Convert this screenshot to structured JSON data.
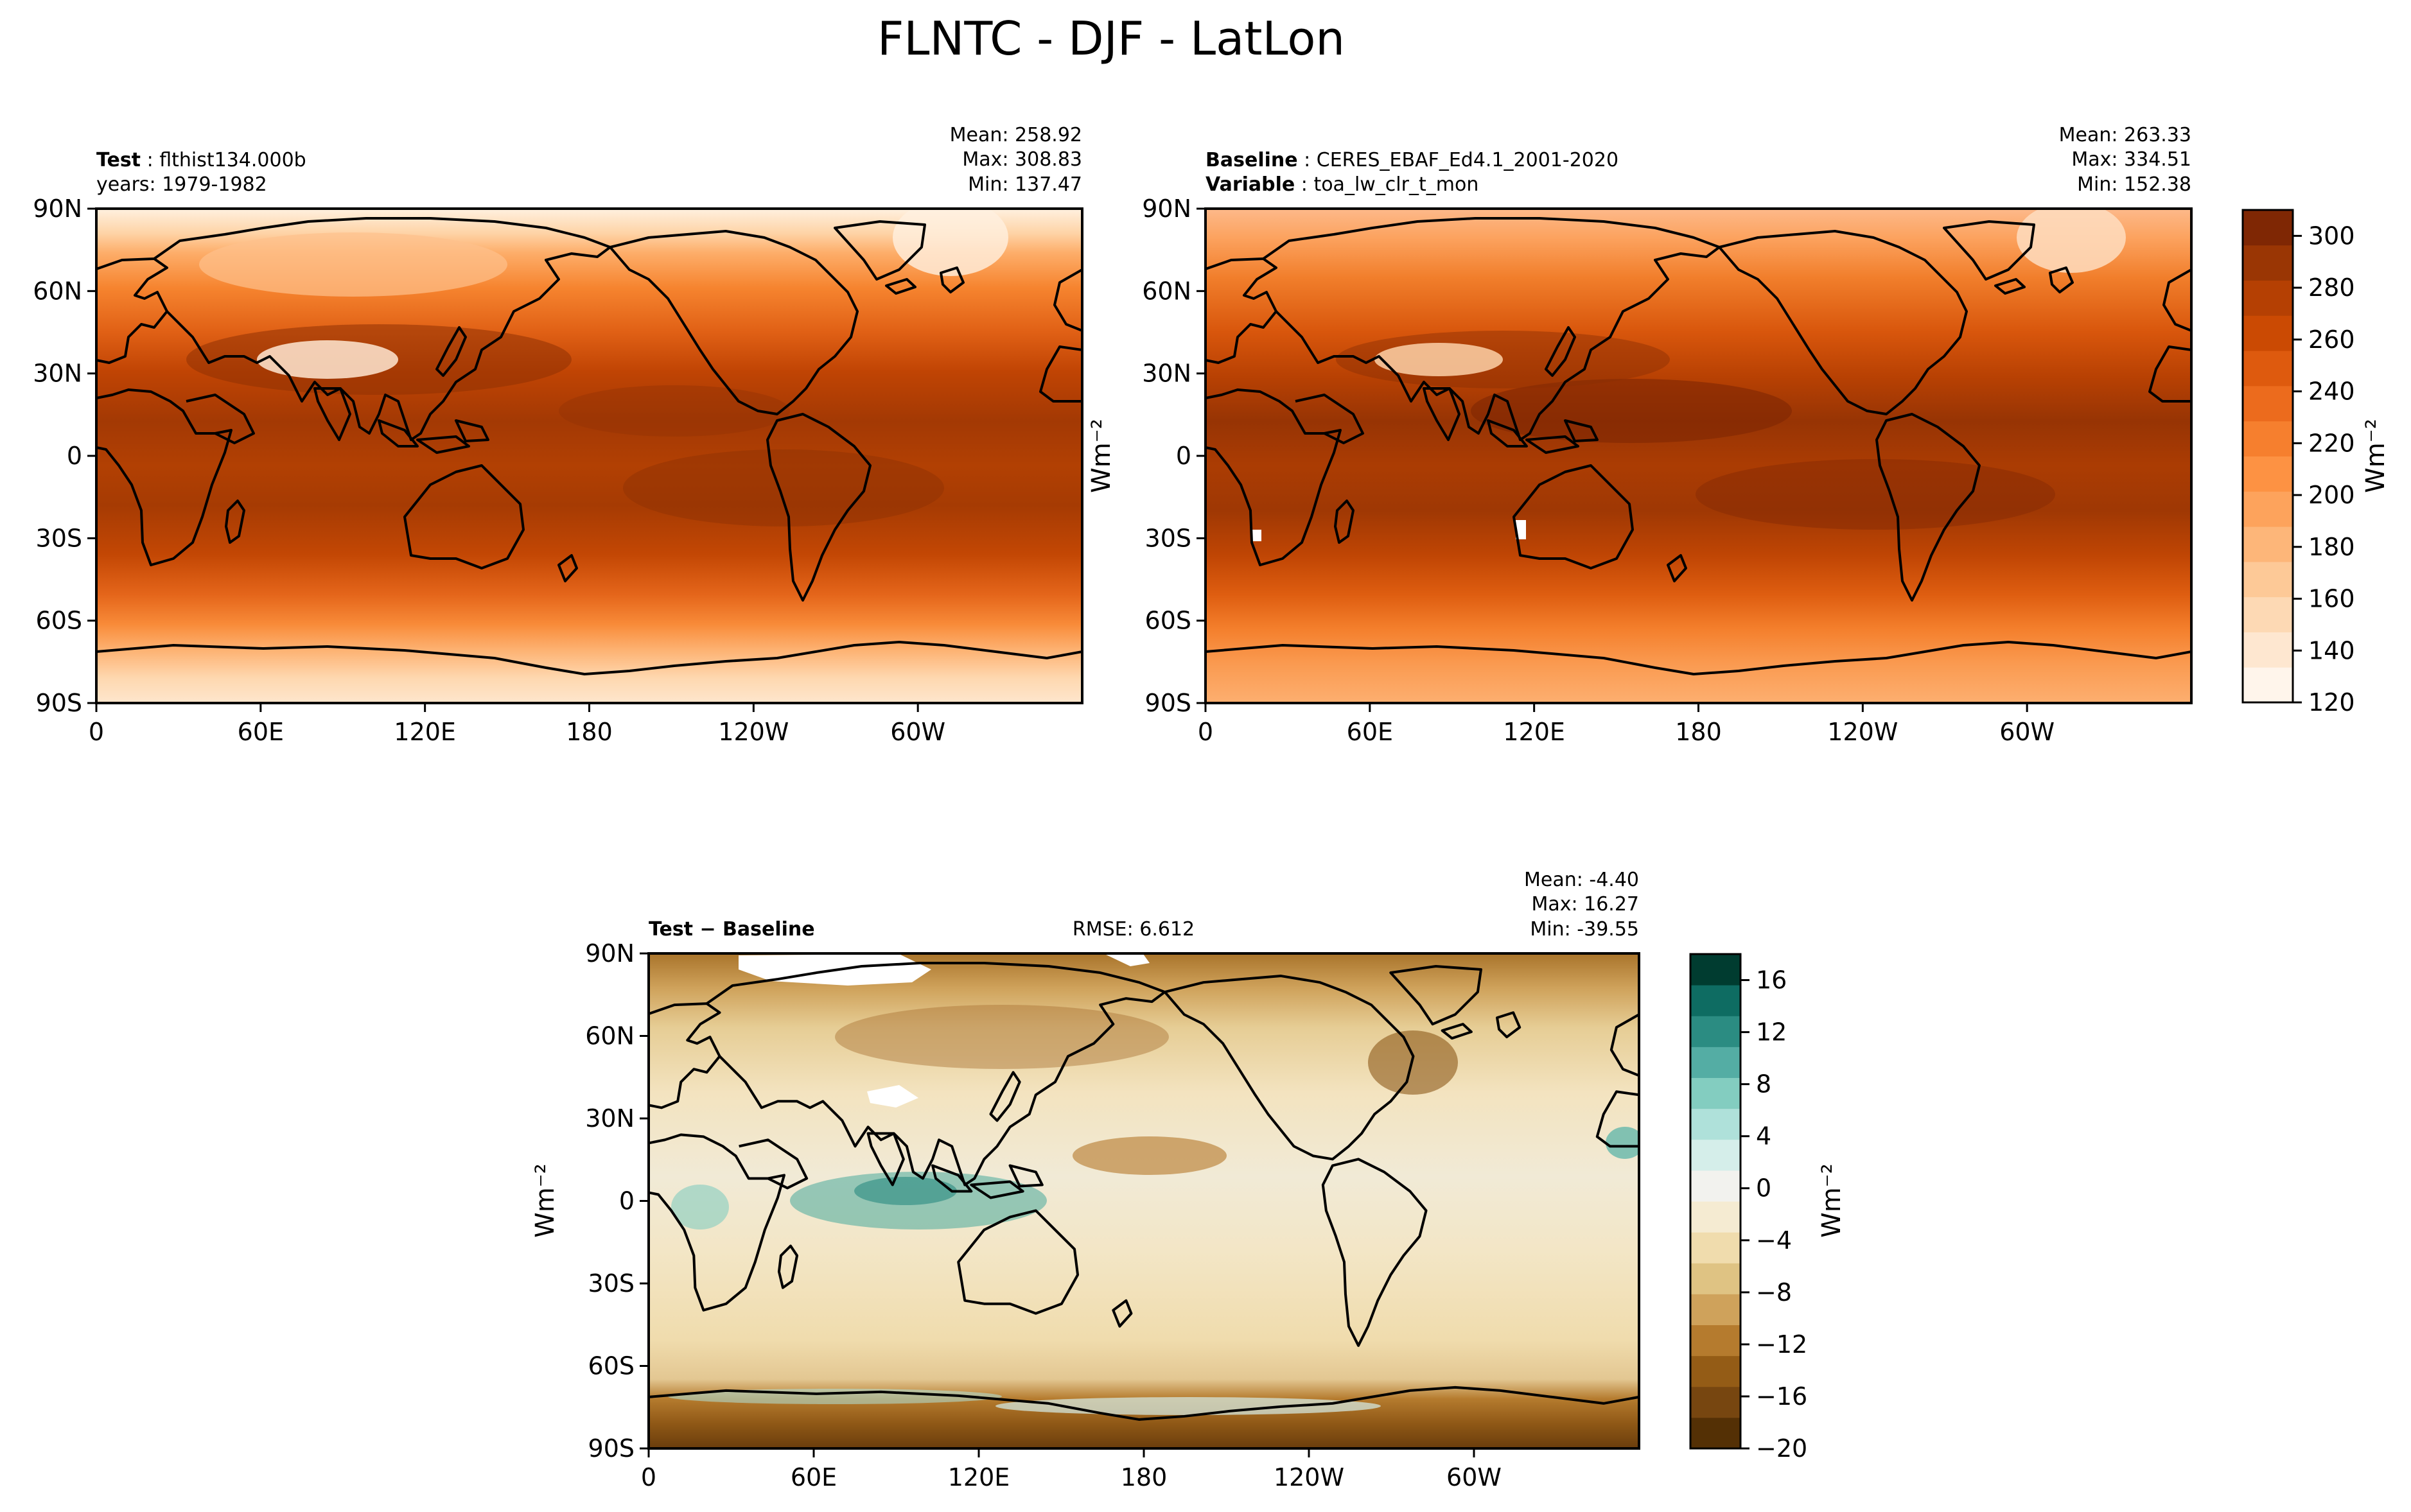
{
  "title": "FLNTC - DJF - LatLon",
  "colors": {
    "field": [
      "#fff5eb",
      "#fee7d0",
      "#fdd9b4",
      "#fdc997",
      "#fdb679",
      "#fda35c",
      "#fd9243",
      "#f67f2e",
      "#ec6b1d",
      "#de5a0e",
      "#cb4a03",
      "#b54003",
      "#9a3604",
      "#7f2704"
    ],
    "diff": [
      "#543005",
      "#774610",
      "#945c16",
      "#b57b2e",
      "#cfa25b",
      "#dfc383",
      "#f0dcad",
      "#f5ebd2",
      "#f2f2ee",
      "#d5eeea",
      "#afe1da",
      "#83cdc0",
      "#54ada4",
      "#2b8c82",
      "#0e6c62",
      "#003c30"
    ],
    "missing": "#ffffff"
  },
  "panels": [
    {
      "id": "test",
      "label_name": "Test",
      "label_value": "flthist134.000b",
      "label2": "years: 1979-1982",
      "stats": {
        "mean": "Mean: 258.92",
        "max": "Max: 308.83",
        "min": "Min: 137.47"
      }
    },
    {
      "id": "baseline",
      "label_name": "Baseline",
      "label_value": "CERES_EBAF_Ed4.1_2001-2020",
      "label2_name": "Variable",
      "label2_value": "toa_lw_clr_t_mon",
      "stats": {
        "mean": "Mean: 263.33",
        "max": "Max: 334.51",
        "min": "Min: 152.38"
      }
    },
    {
      "id": "diff",
      "label_name": "Test − Baseline",
      "rmse": "RMSE: 6.612",
      "stats": {
        "mean": "Mean: -4.40",
        "max": "Max: 16.27",
        "min": "Min: -39.55"
      }
    }
  ],
  "axes": {
    "xticks": [
      "0",
      "60E",
      "120E",
      "180",
      "120W",
      "60W"
    ],
    "yticks": [
      "90N",
      "60N",
      "30N",
      "0",
      "30S",
      "60S",
      "90S"
    ],
    "unit": "Wm⁻²"
  },
  "colorbar_top": {
    "ticks": [
      "300",
      "280",
      "260",
      "240",
      "220",
      "200",
      "180",
      "160",
      "140",
      "120"
    ],
    "range": [
      120,
      310
    ],
    "label": "Wm⁻²"
  },
  "colorbar_diff": {
    "ticks": [
      "16",
      "12",
      "8",
      "4",
      "0",
      "−4",
      "−8",
      "−12",
      "−16",
      "−20"
    ],
    "range": [
      -20,
      18
    ],
    "label": "Wm⁻²"
  },
  "chart_data": [
    {
      "type": "heatmap",
      "title": "Test",
      "subtitle": "flthist134.000b, years: 1979-1982",
      "value_range": [
        120,
        310
      ],
      "stats": {
        "mean": 258.92,
        "max": 308.83,
        "min": 137.47
      }
    },
    {
      "type": "heatmap",
      "title": "Baseline",
      "subtitle": "CERES_EBAF_Ed4.1_2001-2020, toa_lw_clr_t_mon",
      "value_range": [
        120,
        310
      ],
      "stats": {
        "mean": 263.33,
        "max": 334.51,
        "min": 152.38
      }
    },
    {
      "type": "heatmap",
      "title": "Test − Baseline",
      "rmse": 6.612,
      "value_range": [
        -20,
        18
      ],
      "stats": {
        "mean": -4.4,
        "max": 16.27,
        "min": -39.55
      }
    }
  ]
}
